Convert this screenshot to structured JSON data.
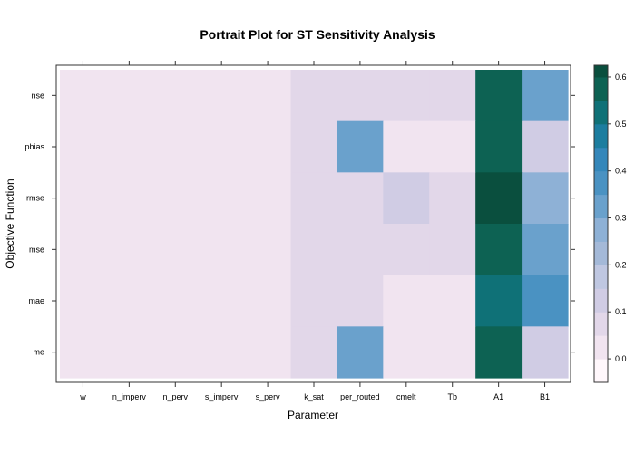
{
  "chart_data": {
    "type": "heatmap",
    "title": "Portrait Plot for ST Sensitivity Analysis",
    "xlabel": "Parameter",
    "ylabel": "Objective Function",
    "x": [
      "w",
      "n_imperv",
      "n_perv",
      "s_imperv",
      "s_perv",
      "k_sat",
      "per_routed",
      "cmelt",
      "Tb",
      "A1",
      "B1"
    ],
    "y": [
      "nse",
      "pbias",
      "rmse",
      "mse",
      "mae",
      "me"
    ],
    "values": [
      [
        0.03,
        0.03,
        0.03,
        0.0,
        0.03,
        0.07,
        0.07,
        0.07,
        0.07,
        0.55,
        0.3
      ],
      [
        0.03,
        0.03,
        0.0,
        0.03,
        0.0,
        0.07,
        0.3,
        0.03,
        0.03,
        0.55,
        0.12
      ],
      [
        0.03,
        0.03,
        0.03,
        0.0,
        0.03,
        0.07,
        0.07,
        0.12,
        0.07,
        0.62,
        0.25
      ],
      [
        0.03,
        0.03,
        0.03,
        0.0,
        0.03,
        0.07,
        0.07,
        0.07,
        0.07,
        0.55,
        0.3
      ],
      [
        0.03,
        0.03,
        0.03,
        0.0,
        0.0,
        0.07,
        0.07,
        0.03,
        0.03,
        0.5,
        0.37
      ],
      [
        0.03,
        0.03,
        0.0,
        0.03,
        0.0,
        0.07,
        0.3,
        0.03,
        0.03,
        0.55,
        0.12
      ]
    ],
    "colorbar": {
      "range": [
        -0.05,
        0.625
      ],
      "ticks": [
        0.0,
        0.1,
        0.2,
        0.3,
        0.4,
        0.5,
        0.6
      ],
      "tick_labels": [
        "0.0",
        "0.1",
        "0.2",
        "0.3",
        "0.4",
        "0.5",
        "0.6"
      ],
      "breaks": [
        -0.05,
        0.0,
        0.05,
        0.1,
        0.15,
        0.2,
        0.25,
        0.3,
        0.35,
        0.4,
        0.45,
        0.5,
        0.55,
        0.6,
        0.625
      ],
      "colors": [
        "#fff7fb",
        "#f1e4f0",
        "#e2d7e9",
        "#d0cce4",
        "#bfc7e1",
        "#a4b9d8",
        "#8eb1d6",
        "#6aa1cc",
        "#4a92c2",
        "#3587ba",
        "#1c7d9f",
        "#0f7177",
        "#0d6253",
        "#0a4f3e",
        "#073a2d"
      ]
    },
    "legend": "right",
    "grid": false
  }
}
